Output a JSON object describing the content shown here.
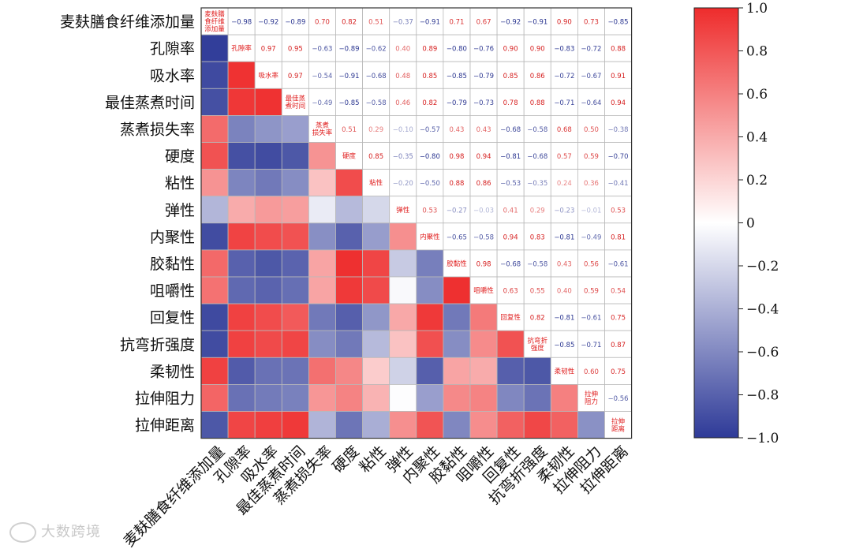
{
  "chart_data": {
    "type": "heatmap",
    "variables": [
      "麦麸膳食纤维添加量",
      "孔隙率",
      "吸水率",
      "最佳蒸煮时间",
      "蒸煮损失率",
      "硬度",
      "粘性",
      "弹性",
      "内聚性",
      "胶黏性",
      "咀嚼性",
      "回复性",
      "抗弯折强度",
      "柔韧性",
      "拉伸阻力",
      "拉伸距离"
    ],
    "diagonal_labels": [
      "麦麸膳\n食纤维\n添加量",
      "孔隙率",
      "吸水率",
      "最佳蒸\n煮时间",
      "蒸煮\n损失率",
      "硬度",
      "粘性",
      "弹性",
      "内聚性",
      "胶黏性",
      "咀嚼性",
      "回复性",
      "抗弯折\n强度",
      "柔韧性",
      "拉伸\n阻力",
      "拉伸\n距离"
    ],
    "matrix": [
      [
        1,
        -0.98,
        -0.92,
        -0.89,
        0.7,
        0.82,
        0.51,
        -0.37,
        -0.91,
        0.71,
        0.67,
        -0.92,
        -0.91,
        0.9,
        0.73,
        -0.85
      ],
      [
        -0.98,
        1,
        0.97,
        0.95,
        -0.63,
        -0.89,
        -0.62,
        0.4,
        0.89,
        -0.8,
        -0.76,
        0.9,
        0.9,
        -0.83,
        -0.72,
        0.88
      ],
      [
        -0.92,
        0.97,
        1,
        0.97,
        -0.54,
        -0.91,
        -0.68,
        0.48,
        0.85,
        -0.85,
        -0.79,
        0.85,
        0.86,
        -0.72,
        -0.67,
        0.91
      ],
      [
        -0.89,
        0.95,
        0.97,
        1,
        -0.49,
        -0.85,
        -0.58,
        0.46,
        0.82,
        -0.79,
        -0.73,
        0.78,
        0.88,
        -0.71,
        -0.64,
        0.94
      ],
      [
        0.7,
        -0.63,
        -0.54,
        -0.49,
        1,
        0.51,
        0.29,
        -0.1,
        -0.57,
        0.43,
        0.43,
        -0.68,
        -0.58,
        0.68,
        0.5,
        -0.38
      ],
      [
        0.82,
        -0.89,
        -0.91,
        -0.85,
        0.51,
        1,
        0.85,
        -0.35,
        -0.8,
        0.98,
        0.94,
        -0.81,
        -0.68,
        0.57,
        0.59,
        -0.7
      ],
      [
        0.51,
        -0.62,
        -0.68,
        -0.58,
        0.29,
        0.85,
        1,
        -0.2,
        -0.5,
        0.88,
        0.86,
        -0.53,
        -0.35,
        0.24,
        0.36,
        -0.41
      ],
      [
        -0.37,
        0.4,
        0.48,
        0.46,
        -0.1,
        -0.35,
        -0.2,
        1,
        0.53,
        -0.27,
        -0.03,
        0.41,
        0.29,
        -0.23,
        -0.01,
        0.53
      ],
      [
        -0.91,
        0.89,
        0.85,
        0.82,
        -0.57,
        -0.8,
        -0.5,
        0.53,
        1,
        -0.65,
        -0.58,
        0.94,
        0.83,
        -0.81,
        -0.49,
        0.81
      ],
      [
        0.71,
        -0.8,
        -0.85,
        -0.79,
        0.43,
        0.98,
        0.88,
        -0.27,
        -0.65,
        1,
        0.98,
        -0.68,
        -0.58,
        0.43,
        0.56,
        -0.61
      ],
      [
        0.67,
        -0.76,
        -0.79,
        -0.73,
        0.43,
        0.94,
        0.86,
        -0.03,
        -0.58,
        0.98,
        1,
        0.63,
        0.55,
        0.4,
        0.59,
        0.54
      ],
      [
        -0.92,
        0.9,
        0.85,
        0.78,
        -0.68,
        -0.81,
        -0.53,
        0.41,
        0.94,
        -0.68,
        0.63,
        1,
        0.82,
        -0.81,
        -0.61,
        0.75
      ],
      [
        -0.91,
        0.9,
        0.86,
        0.88,
        -0.58,
        -0.68,
        -0.35,
        0.29,
        0.83,
        -0.58,
        0.55,
        0.82,
        1,
        -0.85,
        -0.71,
        0.87
      ],
      [
        0.9,
        -0.83,
        -0.72,
        -0.71,
        0.68,
        0.57,
        0.24,
        -0.23,
        -0.81,
        0.43,
        0.4,
        -0.81,
        -0.85,
        1,
        0.6,
        0.75
      ],
      [
        0.73,
        -0.72,
        -0.67,
        -0.64,
        0.5,
        0.59,
        0.36,
        -0.01,
        -0.49,
        0.56,
        0.59,
        -0.61,
        -0.71,
        0.6,
        1,
        -0.56
      ],
      [
        -0.85,
        0.88,
        0.91,
        0.94,
        -0.38,
        -0.7,
        -0.41,
        0.53,
        0.81,
        -0.61,
        0.54,
        0.75,
        0.87,
        0.75,
        -0.56,
        1
      ]
    ],
    "upper_text": [
      [
        null,
        "−0.98",
        "−0.92",
        "−0.89",
        "0.70",
        "0.82",
        "0.51",
        "−0.37",
        "−0.91",
        "0.71",
        "0.67",
        "−0.92",
        "−0.91",
        "0.90",
        "0.73",
        "−0.85"
      ],
      [
        null,
        null,
        "0.97",
        "0.95",
        "−0.63",
        "−0.89",
        "−0.62",
        "0.40",
        "0.89",
        "−0.80",
        "−0.76",
        "0.90",
        "0.90",
        "−0.83",
        "−0.72",
        "0.88"
      ],
      [
        null,
        null,
        null,
        "0.97",
        "−0.54",
        "−0.91",
        "−0.68",
        "0.48",
        "0.85",
        "−0.85",
        "−0.79",
        "0.85",
        "0.86",
        "−0.72",
        "−0.67",
        "0.91"
      ],
      [
        null,
        null,
        null,
        null,
        "−0.49",
        "−0.85",
        "−0.58",
        "0.46",
        "0.82",
        "−0.79",
        "−0.73",
        "0.78",
        "0.88",
        "−0.71",
        "−0.64",
        "0.94"
      ],
      [
        null,
        null,
        null,
        null,
        null,
        "0.51",
        "0.29",
        "−0.10",
        "−0.57",
        "0.43",
        "0.43",
        "−0.68",
        "−0.58",
        "0.68",
        "0.50",
        "−0.38"
      ],
      [
        null,
        null,
        null,
        null,
        null,
        null,
        "0.85",
        "−0.35",
        "−0.80",
        "0.98",
        "0.94",
        "−0.81",
        "−0.68",
        "0.57",
        "0.59",
        "−0.70"
      ],
      [
        null,
        null,
        null,
        null,
        null,
        null,
        null,
        "−0.20",
        "−0.50",
        "0.88",
        "0.86",
        "−0.53",
        "−0.35",
        "0.24",
        "0.36",
        "−0.41"
      ],
      [
        null,
        null,
        null,
        null,
        null,
        null,
        null,
        null,
        "0.53",
        "−0.27",
        "−0.03",
        "0.41",
        "0.29",
        "−0.23",
        "−0.01",
        "0.53"
      ],
      [
        null,
        null,
        null,
        null,
        null,
        null,
        null,
        null,
        null,
        "−0.65",
        "−0.58",
        "0.94",
        "0.83",
        "−0.81",
        "−0.49",
        "0.81"
      ],
      [
        null,
        null,
        null,
        null,
        null,
        null,
        null,
        null,
        null,
        null,
        "0.98",
        "−0.68",
        "−0.58",
        "0.43",
        "0.56",
        "−0.61"
      ],
      [
        null,
        null,
        null,
        null,
        null,
        null,
        null,
        null,
        null,
        null,
        null,
        "0.63",
        "0.55",
        "0.40",
        "0.59",
        "0.54"
      ],
      [
        null,
        null,
        null,
        null,
        null,
        null,
        null,
        null,
        null,
        null,
        null,
        null,
        "0.82",
        "−0.81",
        "−0.61",
        "0.75"
      ],
      [
        null,
        null,
        null,
        null,
        null,
        null,
        null,
        null,
        null,
        null,
        null,
        null,
        null,
        "−0.85",
        "−0.71",
        "0.87"
      ],
      [
        null,
        null,
        null,
        null,
        null,
        null,
        null,
        null,
        null,
        null,
        null,
        null,
        null,
        null,
        "0.60",
        "0.75"
      ],
      [
        null,
        null,
        null,
        null,
        null,
        null,
        null,
        null,
        null,
        null,
        null,
        null,
        null,
        null,
        null,
        "−0.56"
      ],
      [
        null,
        null,
        null,
        null,
        null,
        null,
        null,
        null,
        null,
        null,
        null,
        null,
        null,
        null,
        null,
        null
      ]
    ],
    "colorbar": {
      "range": [
        -1.0,
        1.0
      ],
      "ticks": [
        1.0,
        0.8,
        0.6,
        0.4,
        0.2,
        0,
        -0.2,
        -0.4,
        -0.6,
        -0.8,
        -1.0
      ],
      "tick_labels": [
        "1.0",
        "0.8",
        "0.6",
        "0.4",
        "0.2",
        "0",
        "−0.2",
        "−0.4",
        "−0.6",
        "−0.8",
        "−1.0"
      ],
      "colors": {
        "neg": "#2e3a98",
        "mid": "#ffffff",
        "pos": "#ee2c2c"
      }
    },
    "label_colors": {
      "positive": "#d62020",
      "negative": "#2a3590",
      "diagonal": "#e02020"
    }
  },
  "watermark": {
    "text": "大数跨境"
  }
}
